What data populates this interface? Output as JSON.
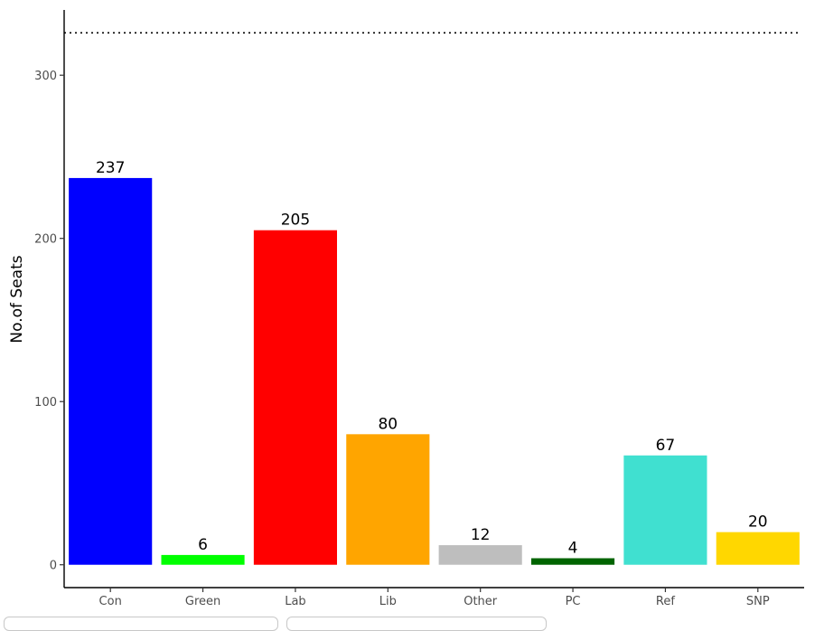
{
  "chart_data": {
    "type": "bar",
    "categories": [
      "Con",
      "Green",
      "Lab",
      "Lib",
      "Other",
      "PC",
      "Ref",
      "SNP"
    ],
    "values": [
      237,
      6,
      205,
      80,
      12,
      4,
      67,
      20
    ],
    "data_labels": [
      "237",
      "6",
      "205",
      "80",
      "12",
      "4",
      "67",
      "20"
    ],
    "colors": [
      "#0000ff",
      "#00ff00",
      "#ff0000",
      "#ffa500",
      "#bebebe",
      "#006400",
      "#40e0d0",
      "#ffd700"
    ],
    "title": "",
    "xlabel": "",
    "ylabel": "No.of Seats",
    "ylim": [
      -14,
      340
    ],
    "y_ticks": [
      0,
      100,
      200,
      300
    ],
    "y_tick_labels": [
      "0",
      "100",
      "200",
      "300"
    ],
    "reference_line": {
      "y": 326,
      "style": "dotted",
      "color": "#000000"
    },
    "grid": false,
    "legend": "none"
  }
}
